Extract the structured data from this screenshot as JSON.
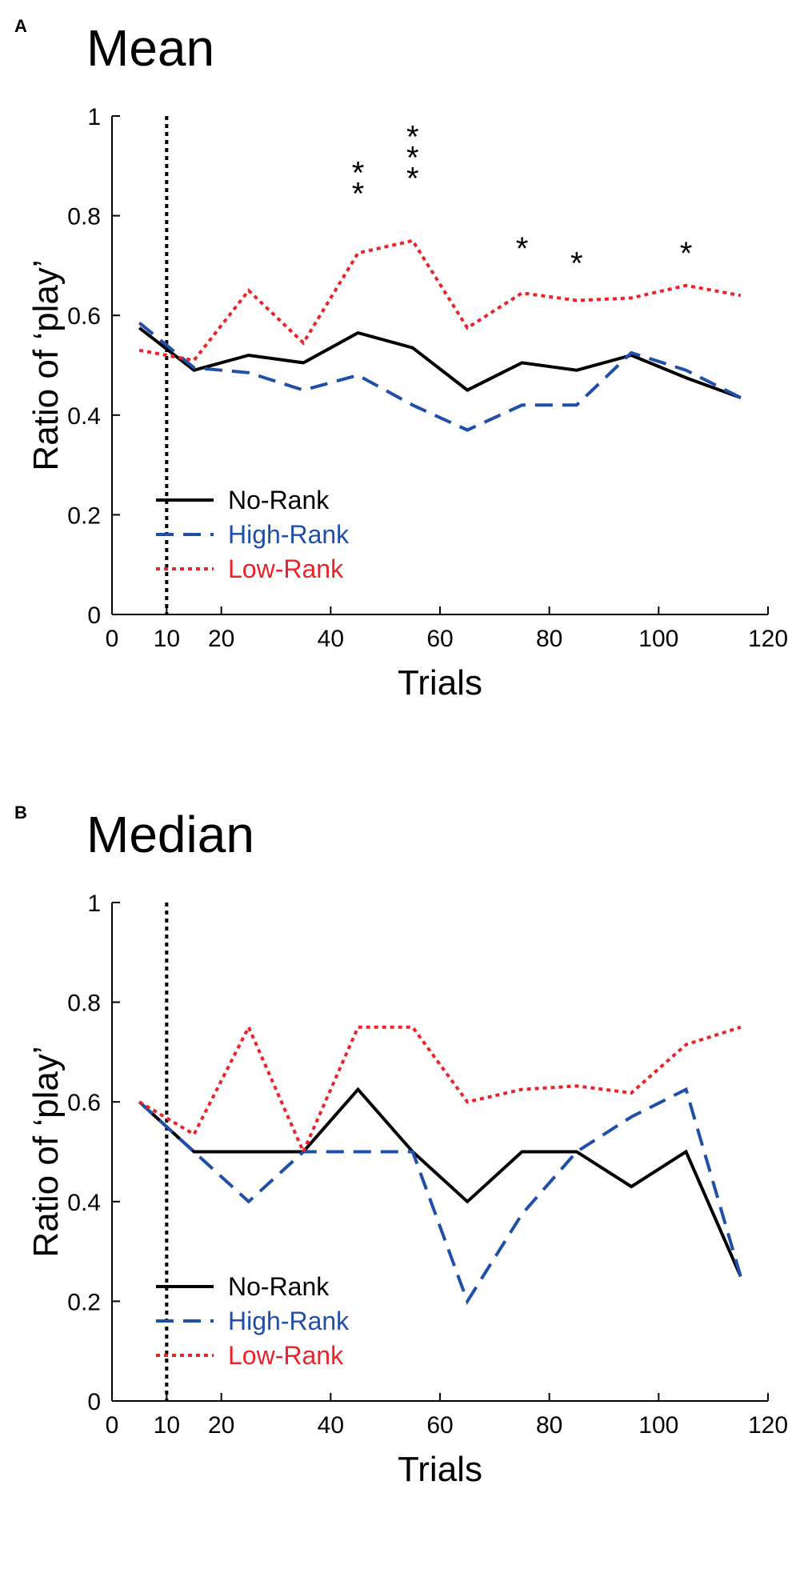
{
  "chart_data": [
    {
      "panel": "A",
      "type": "line",
      "title": "Mean",
      "xlabel": "Trials",
      "ylabel": "Ratio of ‘play’",
      "xlim": [
        0,
        120
      ],
      "ylim": [
        0,
        1
      ],
      "x_ticks": [
        "0",
        "10",
        "20",
        "40",
        "60",
        "80",
        "100",
        "120"
      ],
      "x_tick_values": [
        0,
        10,
        20,
        40,
        60,
        80,
        100,
        120
      ],
      "y_ticks": [
        "0",
        "0.2",
        "0.4",
        "0.6",
        "0.8",
        "1"
      ],
      "y_tick_values": [
        0,
        0.2,
        0.4,
        0.6,
        0.8,
        1
      ],
      "reference_line_x": 10,
      "x": [
        5,
        15,
        25,
        35,
        45,
        55,
        65,
        75,
        85,
        95,
        105,
        115
      ],
      "series": [
        {
          "name": "No-Rank",
          "color": "#000000",
          "style": "solid",
          "values": [
            0.575,
            0.49,
            0.52,
            0.505,
            0.565,
            0.535,
            0.45,
            0.505,
            0.49,
            0.52,
            0.475,
            0.435
          ]
        },
        {
          "name": "High-Rank",
          "color": "#1f4fa8",
          "style": "dashed",
          "values": [
            0.585,
            0.495,
            0.485,
            0.45,
            0.48,
            0.42,
            0.37,
            0.42,
            0.42,
            0.525,
            0.49,
            0.435
          ]
        },
        {
          "name": "Low-Rank",
          "color": "#e8232a",
          "style": "dotted",
          "values": [
            0.53,
            0.51,
            0.65,
            0.545,
            0.725,
            0.75,
            0.575,
            0.645,
            0.63,
            0.635,
            0.66,
            0.64
          ]
        }
      ],
      "annotations": [
        {
          "x": 45,
          "y": 0.855,
          "text": "**",
          "stack": 2
        },
        {
          "x": 55,
          "y": 0.885,
          "text": "***",
          "stack": 3
        },
        {
          "x": 75,
          "y": 0.745,
          "text": "*",
          "stack": 1
        },
        {
          "x": 85,
          "y": 0.715,
          "text": "*",
          "stack": 1
        },
        {
          "x": 105,
          "y": 0.735,
          "text": "*",
          "stack": 1
        }
      ],
      "legend_position": "lower-left"
    },
    {
      "panel": "B",
      "type": "line",
      "title": "Median",
      "xlabel": "Trials",
      "ylabel": "Ratio of ‘play’",
      "xlim": [
        0,
        120
      ],
      "ylim": [
        0,
        1
      ],
      "x_ticks": [
        "0",
        "10",
        "20",
        "40",
        "60",
        "80",
        "100",
        "120"
      ],
      "x_tick_values": [
        0,
        10,
        20,
        40,
        60,
        80,
        100,
        120
      ],
      "y_ticks": [
        "0",
        "0.2",
        "0.4",
        "0.6",
        "0.8",
        "1"
      ],
      "y_tick_values": [
        0,
        0.2,
        0.4,
        0.6,
        0.8,
        1
      ],
      "reference_line_x": 10,
      "x": [
        5,
        15,
        25,
        35,
        45,
        55,
        65,
        75,
        85,
        95,
        105,
        115
      ],
      "series": [
        {
          "name": "No-Rank",
          "color": "#000000",
          "style": "solid",
          "values": [
            0.6,
            0.5,
            0.5,
            0.5,
            0.625,
            0.5,
            0.4,
            0.5,
            0.5,
            0.43,
            0.5,
            0.25
          ]
        },
        {
          "name": "High-Rank",
          "color": "#1f4fa8",
          "style": "dashed",
          "values": [
            0.6,
            0.5,
            0.4,
            0.5,
            0.5,
            0.5,
            0.2,
            0.375,
            0.5,
            0.57,
            0.625,
            0.25
          ]
        },
        {
          "name": "Low-Rank",
          "color": "#e8232a",
          "style": "dotted",
          "values": [
            0.6,
            0.535,
            0.75,
            0.5,
            0.75,
            0.75,
            0.6,
            0.625,
            0.632,
            0.618,
            0.715,
            0.75
          ]
        }
      ],
      "annotations": [],
      "legend_position": "lower-left"
    }
  ]
}
